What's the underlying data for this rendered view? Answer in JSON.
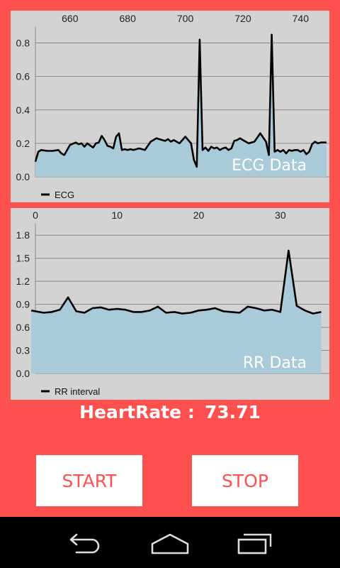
{
  "ecg_chart": {
    "overlay_label": "ECG Data",
    "legend_label": "ECG"
  },
  "rr_chart": {
    "overlay_label": "RR Data",
    "legend_label": "RR interval"
  },
  "heart_rate": {
    "label": "HeartRate :",
    "value": "73.71"
  },
  "buttons": {
    "start": "START",
    "stop": "STOP"
  },
  "colors": {
    "background": "#FF5050",
    "chart_bg": "#D3D3D3",
    "fill": "#A9CBD9",
    "line": "#000000",
    "grid": "#888888"
  },
  "chart_data": [
    {
      "type": "area",
      "legend": "ECG",
      "overlay_text": "ECG Data",
      "xlim": [
        648,
        750
      ],
      "ylim": [
        0,
        0.9
      ],
      "x_ticks": [
        660,
        680,
        700,
        720,
        740
      ],
      "y_ticks": [
        0.0,
        0.2,
        0.4,
        0.6,
        0.8
      ],
      "x_axis_position": "top",
      "grid": true,
      "legend_position": "bottom-left",
      "series": [
        {
          "x": [
            648,
            649,
            650,
            652,
            654,
            656,
            657,
            658,
            660,
            662,
            663,
            664,
            665,
            666,
            668,
            669,
            670,
            671,
            672,
            673,
            674,
            675,
            676,
            677,
            678,
            679,
            680,
            681,
            682,
            684,
            686,
            688,
            690,
            692,
            693,
            694,
            695,
            696,
            698,
            700,
            702,
            703,
            704,
            705,
            706,
            707,
            708,
            709,
            710,
            711,
            712,
            713,
            714,
            715,
            716,
            717,
            718,
            719,
            720,
            722,
            724,
            726,
            728,
            729,
            730,
            731,
            732,
            733,
            734,
            735,
            736,
            737,
            738,
            739,
            740,
            741,
            742,
            743,
            744,
            745,
            746,
            747,
            748,
            749
          ],
          "y": [
            0.09,
            0.15,
            0.16,
            0.155,
            0.155,
            0.16,
            0.14,
            0.13,
            0.19,
            0.205,
            0.195,
            0.2,
            0.18,
            0.2,
            0.175,
            0.2,
            0.205,
            0.245,
            0.22,
            0.185,
            0.18,
            0.17,
            0.24,
            0.26,
            0.16,
            0.165,
            0.16,
            0.165,
            0.16,
            0.17,
            0.16,
            0.21,
            0.23,
            0.22,
            0.215,
            0.225,
            0.21,
            0.22,
            0.2,
            0.24,
            0.2,
            0.1,
            0.06,
            0.82,
            0.16,
            0.175,
            0.155,
            0.18,
            0.17,
            0.175,
            0.16,
            0.17,
            0.175,
            0.16,
            0.17,
            0.215,
            0.22,
            0.23,
            0.22,
            0.2,
            0.21,
            0.26,
            0.21,
            0.13,
            0.85,
            0.15,
            0.16,
            0.15,
            0.16,
            0.14,
            0.16,
            0.155,
            0.16,
            0.16,
            0.15,
            0.16,
            0.135,
            0.15,
            0.195,
            0.21,
            0.2,
            0.205,
            0.205,
            0.205
          ]
        }
      ]
    },
    {
      "type": "area",
      "legend": "RR interval",
      "overlay_text": "RR Data",
      "xlim": [
        0,
        36
      ],
      "ylim": [
        0,
        1.95
      ],
      "x_ticks": [
        0,
        10,
        20,
        30
      ],
      "y_ticks": [
        0.0,
        0.3,
        0.6,
        0.9,
        1.2,
        1.5,
        1.8
      ],
      "x_axis_position": "top",
      "grid": true,
      "legend_position": "bottom-left",
      "series": [
        {
          "x": [
            -0.5,
            1,
            2,
            3,
            4,
            5,
            6,
            7,
            8,
            9,
            10,
            11,
            12,
            13,
            14,
            15,
            16,
            17,
            18,
            19,
            20,
            21,
            22,
            23,
            24,
            25,
            26,
            27,
            28,
            29,
            30,
            31,
            32,
            33,
            34,
            35
          ],
          "y": [
            0.82,
            0.79,
            0.8,
            0.83,
            0.99,
            0.81,
            0.79,
            0.85,
            0.86,
            0.83,
            0.84,
            0.83,
            0.8,
            0.8,
            0.82,
            0.87,
            0.79,
            0.8,
            0.78,
            0.79,
            0.82,
            0.83,
            0.85,
            0.81,
            0.8,
            0.79,
            0.87,
            0.85,
            0.82,
            0.83,
            0.8,
            1.6,
            0.88,
            0.82,
            0.78,
            0.8
          ]
        }
      ]
    }
  ]
}
